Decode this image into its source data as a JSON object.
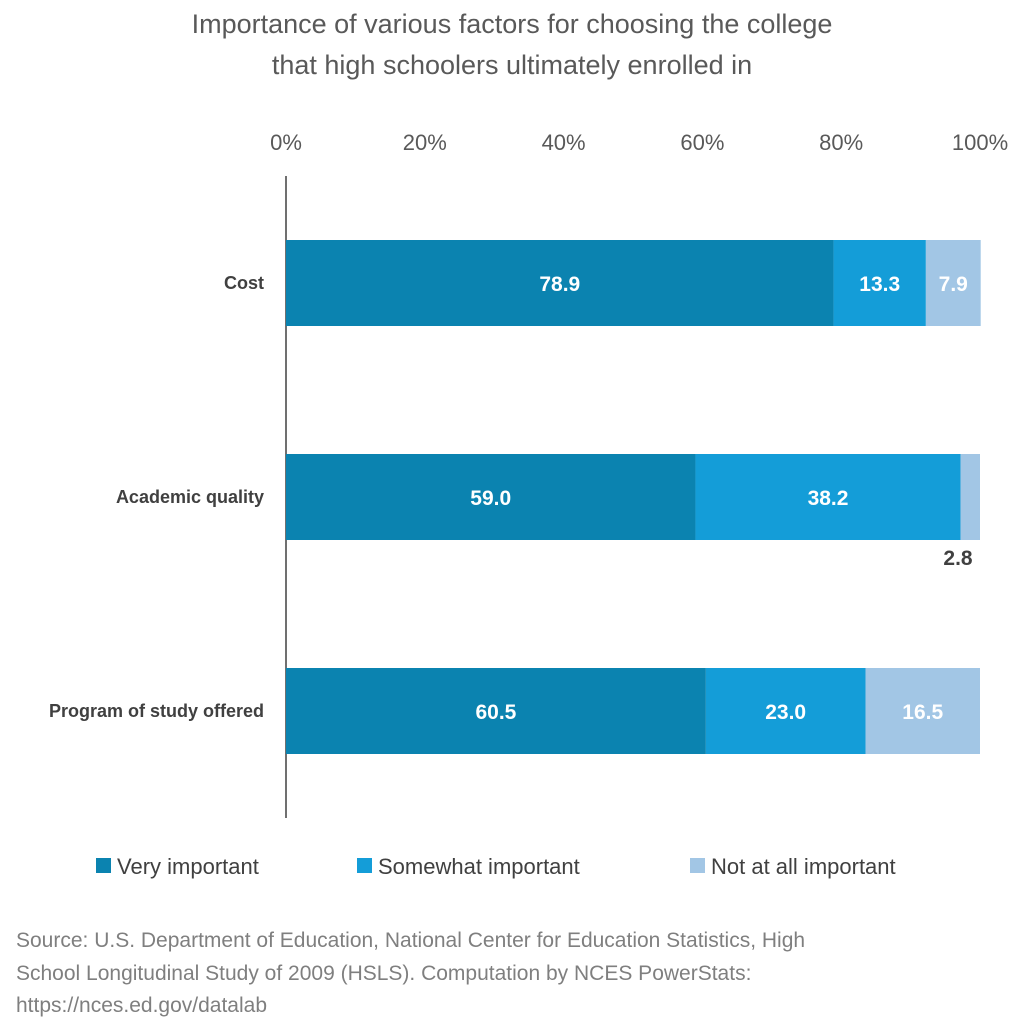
{
  "chart_data": {
    "type": "bar",
    "orientation": "horizontal",
    "stacked": true,
    "title_lines": [
      "Importance of various factors for choosing the college",
      "that high schoolers ultimately enrolled in"
    ],
    "categories": [
      "Cost",
      "Academic quality",
      "Program of study offered"
    ],
    "series": [
      {
        "name": "Very important",
        "color": "#0b83b0",
        "values": [
          78.9,
          59.0,
          60.5
        ]
      },
      {
        "name": "Somewhat important",
        "color": "#149dd8",
        "values": [
          13.3,
          38.2,
          23.0
        ]
      },
      {
        "name": "Not at all important",
        "color": "#a2c6e5",
        "values": [
          7.9,
          2.8,
          16.5
        ]
      }
    ],
    "value_labels": [
      [
        "78.9",
        "13.3",
        "7.9"
      ],
      [
        "59.0",
        "38.2",
        "2.8"
      ],
      [
        "60.5",
        "23.0",
        "16.5"
      ]
    ],
    "xlim": [
      0,
      100
    ],
    "xticks": [
      0,
      20,
      40,
      60,
      80,
      100
    ],
    "xtick_labels": [
      "0%",
      "20%",
      "40%",
      "60%",
      "80%",
      "100%"
    ],
    "x_axis_position": "top",
    "legend_position": "bottom",
    "grid": false
  },
  "source_lines": [
    "Source: U.S. Department of Education, National Center for Education Statistics, High",
    "School Longitudinal Study of 2009 (HSLS). Computation by NCES PowerStats:",
    "https://nces.ed.gov/datalab"
  ]
}
